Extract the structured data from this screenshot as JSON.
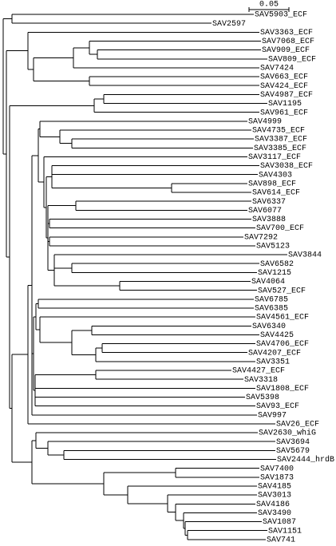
{
  "scale_bar": {
    "label": "0.05"
  },
  "leaves": [
    "SAV5903_ECF",
    "SAV2597",
    "SAV3363_ECF",
    "SAV7068_ECF",
    "SAV909_ECF",
    "SAV809_ECF",
    "SAV7424",
    "SAV663_ECF",
    "SAV424_ECF",
    "SAV4987_ECF",
    "SAV1195",
    "SAV961_ECF",
    "SAV4999",
    "SAV4735_ECF",
    "SAV3387_ECF",
    "SAV3385_ECF",
    "SAV3117_ECF",
    "SAV3038_ECF",
    "SAV4303",
    "SAV898_ECF",
    "SAV614_ECF",
    "SAV6337",
    "SAV6077",
    "SAV3888",
    "SAV700_ECF",
    "SAV7292",
    "SAV5123",
    "SAV3844",
    "SAV6582",
    "SAV1215",
    "SAV4064",
    "SAV527_ECF",
    "SAV6785",
    "SAV6385",
    "SAV4561_ECF",
    "SAV6340",
    "SAV4425",
    "SAV4706_ECF",
    "SAV4207_ECF",
    "SAV3351",
    "SAV4427_ECF",
    "SAV3318",
    "SAV1808_ECF",
    "SAV5398",
    "SAV93_ECF",
    "SAV997",
    "SAV26_ECF",
    "SAV2630_whiG",
    "SAV3694",
    "SAV5679",
    "SAV2444_hrdB",
    "SAV7400",
    "SAV1873",
    "SAV4185",
    "SAV3013",
    "SAV4186",
    "SAV3490",
    "SAV1087",
    "SAV1151",
    "SAV741"
  ]
}
